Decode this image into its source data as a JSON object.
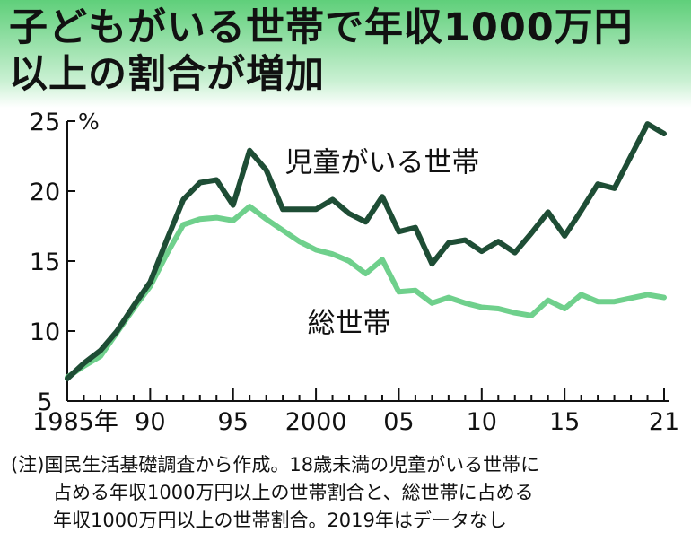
{
  "title": {
    "line1": "子どもがいる世帯で年収1000万円",
    "line2": "以上の割合が増加"
  },
  "chart_data": {
    "type": "line",
    "x": [
      1985,
      1986,
      1987,
      1988,
      1989,
      1990,
      1991,
      1992,
      1993,
      1994,
      1995,
      1996,
      1997,
      1998,
      1999,
      2000,
      2001,
      2002,
      2003,
      2004,
      2005,
      2006,
      2007,
      2008,
      2009,
      2010,
      2011,
      2012,
      2013,
      2014,
      2015,
      2016,
      2017,
      2018,
      2019,
      2020,
      2021
    ],
    "series": [
      {
        "name": "児童がいる世帯",
        "color": "#1e4d35",
        "values": [
          6.6,
          7.7,
          8.6,
          10.0,
          11.8,
          13.5,
          16.5,
          19.4,
          20.6,
          20.8,
          19.0,
          22.9,
          21.5,
          18.7,
          18.7,
          18.7,
          19.4,
          18.4,
          17.8,
          19.6,
          17.1,
          17.4,
          14.8,
          16.3,
          16.5,
          15.7,
          16.4,
          15.6,
          17.0,
          18.5,
          16.8,
          18.6,
          20.5,
          20.2,
          null,
          24.8,
          24.1
        ]
      },
      {
        "name": "総世帯",
        "color": "#6fd08c",
        "values": [
          6.7,
          7.5,
          8.2,
          9.9,
          11.6,
          13.2,
          15.5,
          17.6,
          18.0,
          18.1,
          17.9,
          18.9,
          18.0,
          17.2,
          16.4,
          15.8,
          15.5,
          15.0,
          14.1,
          15.1,
          12.8,
          12.9,
          12.0,
          12.4,
          12.0,
          11.7,
          11.6,
          11.3,
          11.1,
          12.2,
          11.6,
          12.6,
          12.1,
          12.1,
          null,
          12.6,
          12.4
        ]
      }
    ],
    "xticks": [
      1985,
      1990,
      1995,
      2000,
      2005,
      2010,
      2015,
      2021
    ],
    "xtick_labels": [
      "1985年",
      "90",
      "95",
      "2000",
      "05",
      "10",
      "15",
      "21"
    ],
    "yticks": [
      5,
      10,
      15,
      20,
      25
    ],
    "ylim": [
      5,
      25
    ],
    "xlim": [
      1985,
      2021
    ],
    "ylabel": "%",
    "grid": false
  },
  "note": {
    "line1": "(注)国民生活基礎調査から作成。18歳未満の児童がいる世帯に",
    "line2": "占める年収1000万円以上の世帯割合と、総世帯に占める",
    "line3": "年収1000万円以上の世帯割合。2019年はデータなし"
  }
}
